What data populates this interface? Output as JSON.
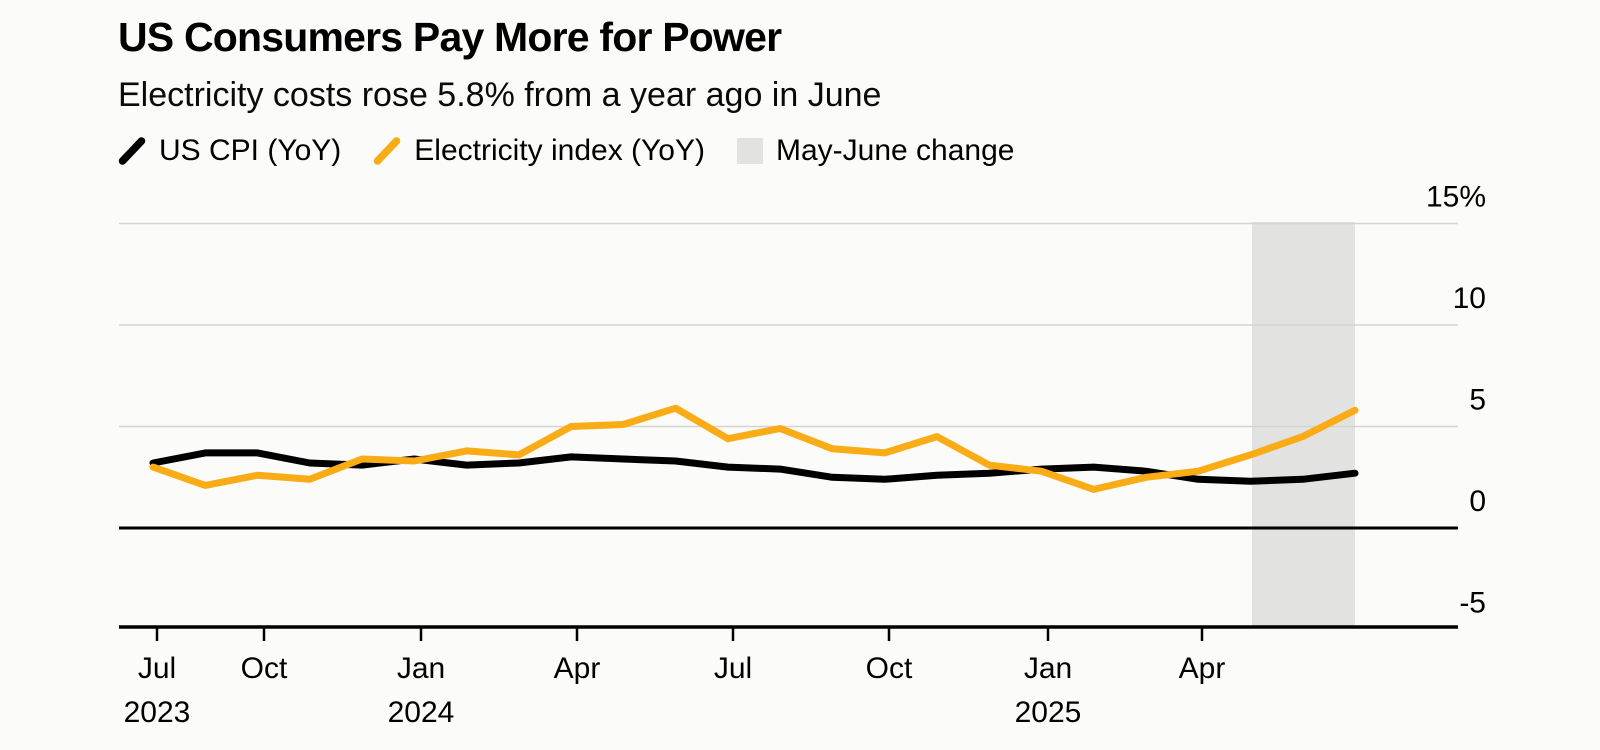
{
  "header": {
    "title": "US Consumers Pay More for Power",
    "subtitle": "Electricity costs rose 5.8% from a year ago in June"
  },
  "legend": {
    "items": [
      {
        "label": "US CPI (YoY)",
        "swatch": "line",
        "color": "#000000"
      },
      {
        "label": "Electricity index (YoY)",
        "swatch": "line",
        "color": "#F9AC15"
      },
      {
        "label": "May-June change",
        "swatch": "square",
        "color": "#E2E2E0"
      }
    ]
  },
  "chart_data": {
    "type": "line",
    "x": [
      "Jul 2023",
      "Aug 2023",
      "Sep 2023",
      "Oct 2023",
      "Nov 2023",
      "Dec 2023",
      "Jan 2024",
      "Feb 2024",
      "Mar 2024",
      "Apr 2024",
      "May 2024",
      "Jun 2024",
      "Jul 2024",
      "Aug 2024",
      "Sep 2024",
      "Oct 2024",
      "Nov 2024",
      "Dec 2024",
      "Jan 2025",
      "Feb 2025",
      "Mar 2025",
      "Apr 2025",
      "May 2025",
      "Jun 2025"
    ],
    "series": [
      {
        "name": "US CPI (YoY)",
        "color": "#000000",
        "values": [
          3.2,
          3.7,
          3.7,
          3.2,
          3.1,
          3.4,
          3.1,
          3.2,
          3.5,
          3.4,
          3.3,
          3.0,
          2.9,
          2.5,
          2.4,
          2.6,
          2.7,
          2.9,
          3.0,
          2.8,
          2.4,
          2.3,
          2.4,
          2.7
        ]
      },
      {
        "name": "Electricity index (YoY)",
        "color": "#F9AC15",
        "values": [
          3.0,
          2.1,
          2.6,
          2.4,
          3.4,
          3.3,
          3.8,
          3.6,
          5.0,
          5.1,
          5.9,
          4.4,
          4.9,
          3.9,
          3.7,
          4.5,
          3.1,
          2.8,
          1.9,
          2.5,
          2.8,
          3.6,
          4.5,
          5.8
        ]
      }
    ],
    "highlight_band": {
      "label": "May-June change",
      "months": [
        "May 2025",
        "Jun 2025"
      ],
      "color": "#E2E2E0"
    },
    "x_ticks": [
      {
        "label": "Jul",
        "year": "2023"
      },
      {
        "label": "Oct"
      },
      {
        "label": "Jan",
        "year": "2024"
      },
      {
        "label": "Apr"
      },
      {
        "label": "Jul"
      },
      {
        "label": "Oct"
      },
      {
        "label": "Jan",
        "year": "2025"
      },
      {
        "label": "Apr"
      }
    ],
    "y_ticks": [
      {
        "label": "15%",
        "value": 15
      },
      {
        "label": "10",
        "value": 10
      },
      {
        "label": "5",
        "value": 5
      },
      {
        "label": "0",
        "value": 0
      },
      {
        "label": "-5",
        "value": -5
      }
    ],
    "ylim": [
      -5,
      15
    ],
    "grid": "horizontal",
    "legend_position": "top",
    "colors": {
      "grid": "#D4D4D1",
      "axis": "#000000",
      "zero_line": "#000000",
      "background": "#FBFBF9"
    }
  }
}
